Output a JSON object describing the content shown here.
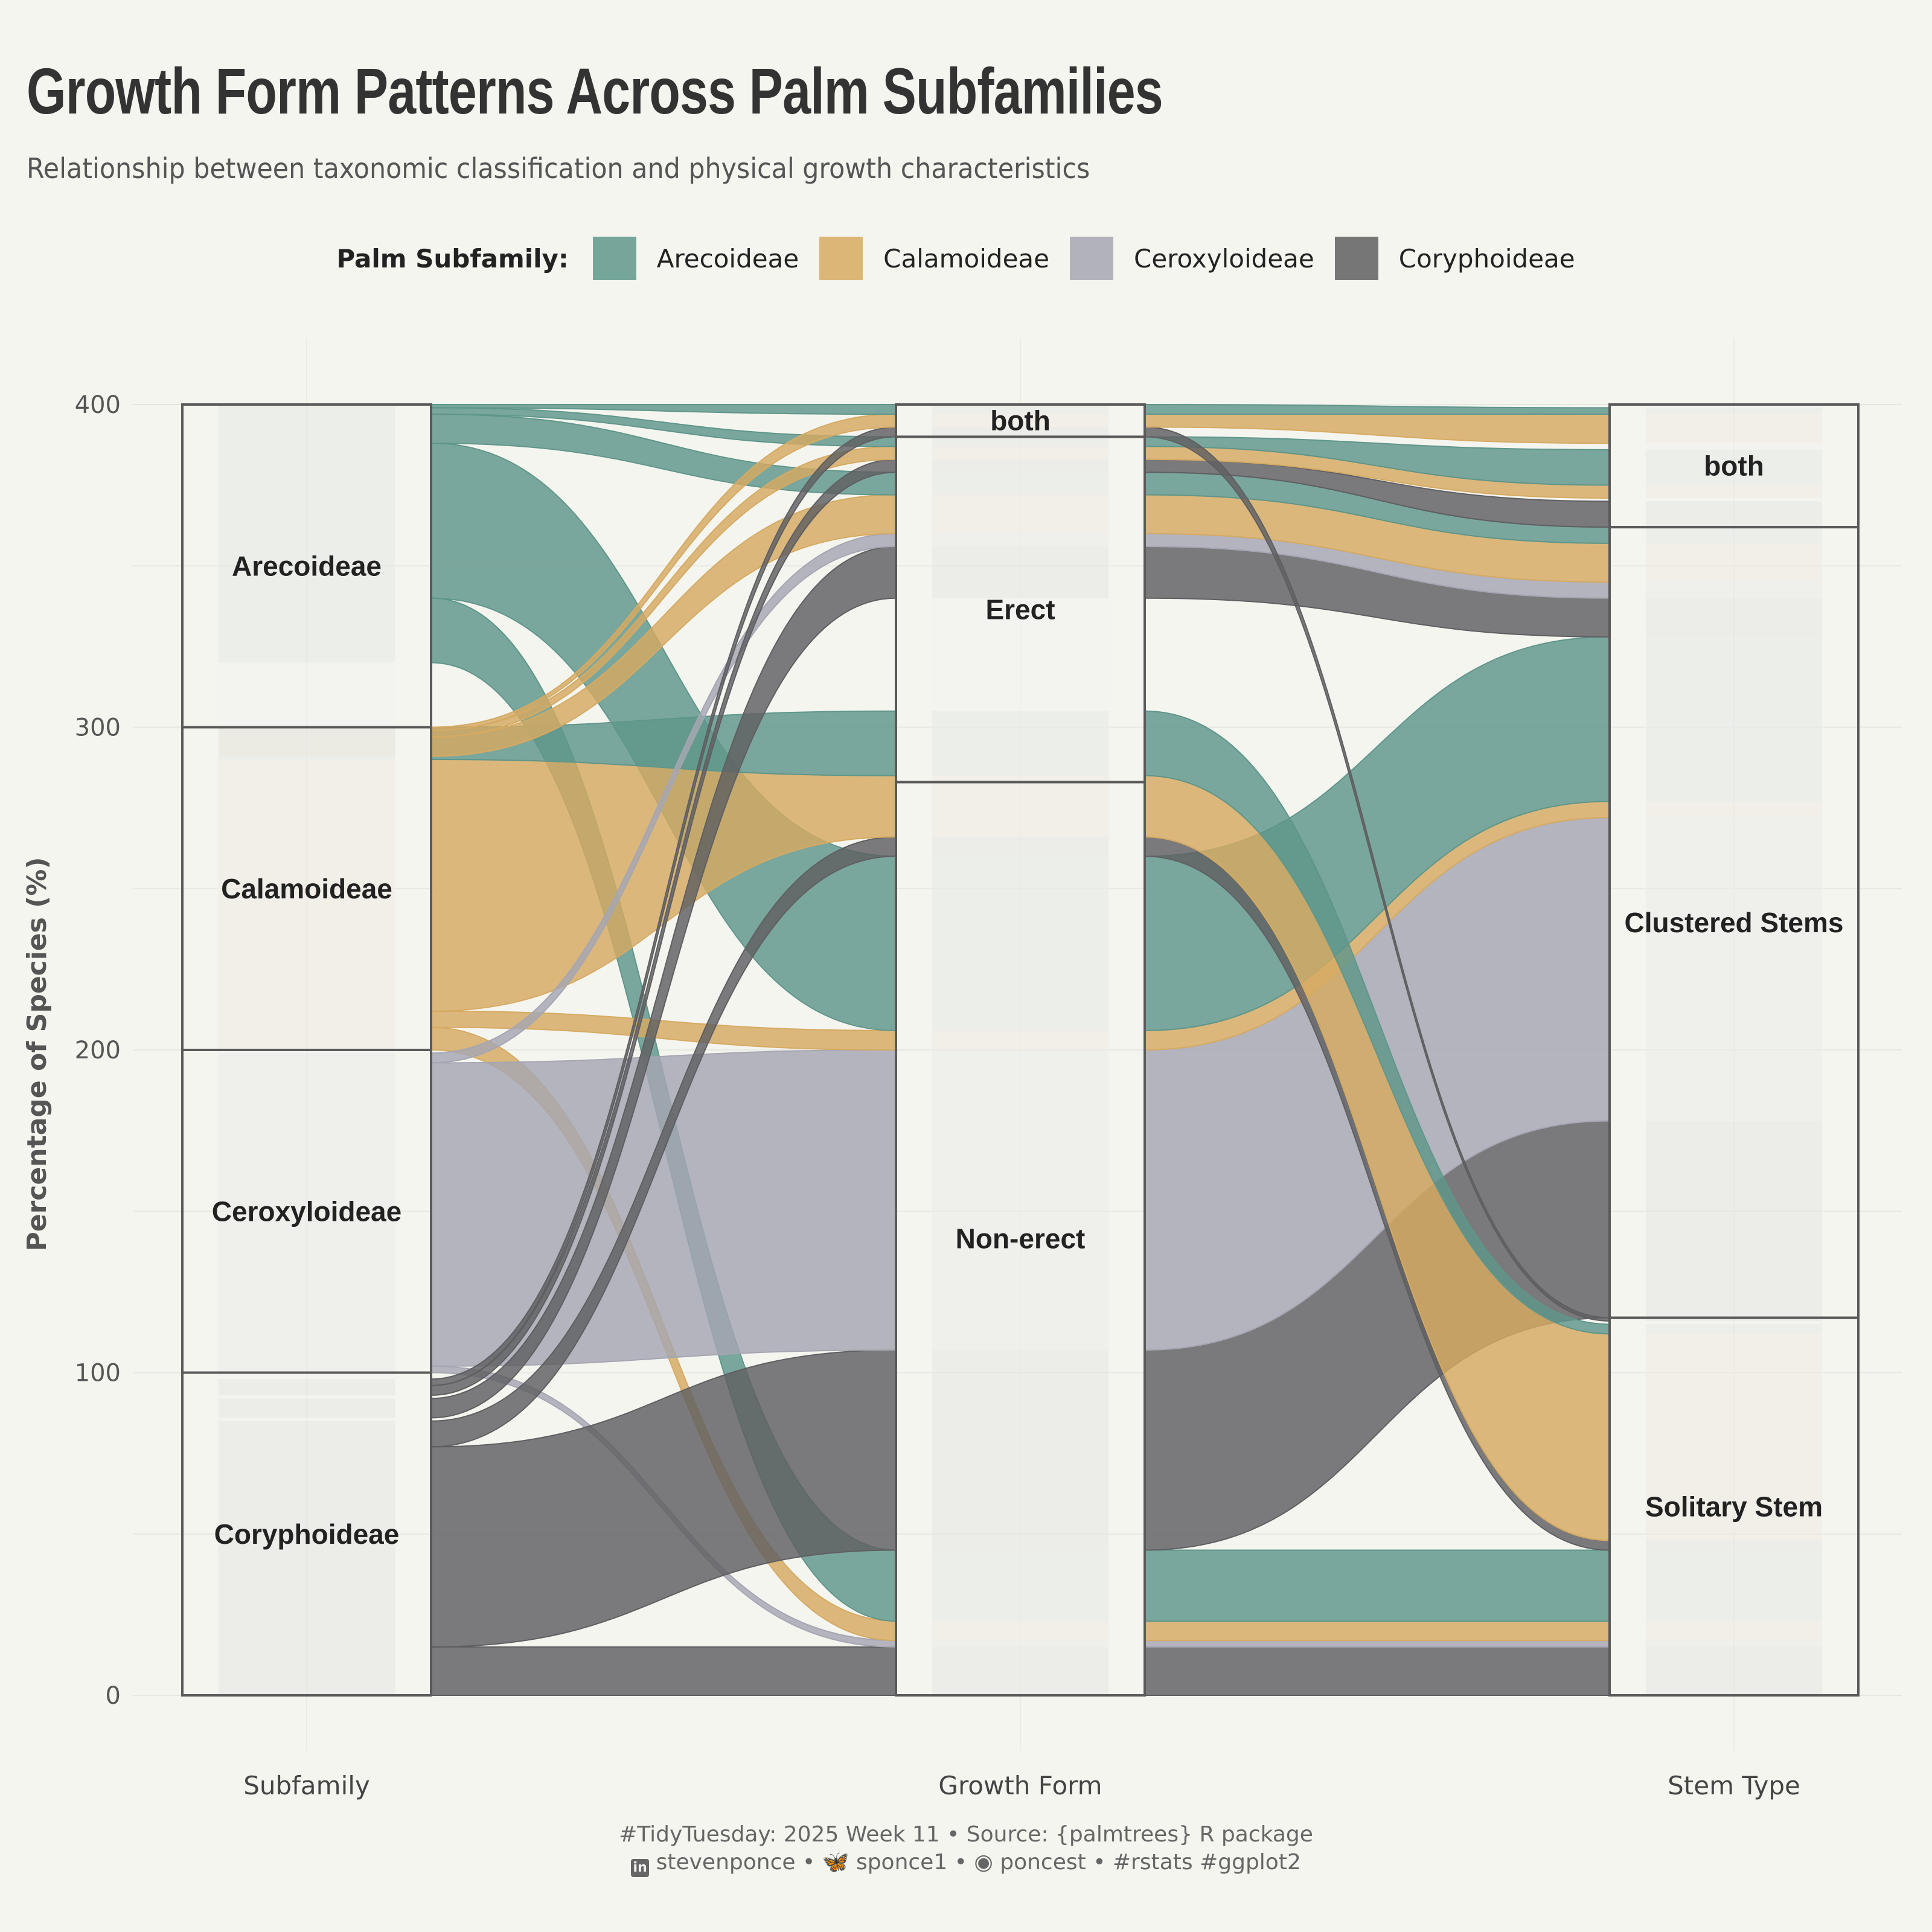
{
  "title": "Growth Form Patterns Across Palm Subfamilies",
  "subtitle": "Relationship between taxonomic classification and physical growth characteristics",
  "legend": {
    "title": "Palm Subfamily:",
    "items": [
      {
        "label": "Arecoideae",
        "color": "#5f968a"
      },
      {
        "label": "Calamoideae",
        "color": "#d6aa62"
      },
      {
        "label": "Ceroxyloideae",
        "color": "#a5a6b2"
      },
      {
        "label": "Coryphoideae",
        "color": "#5f5f62"
      }
    ]
  },
  "caption": {
    "line1": "#TidyTuesday: 2025 Week 11 • Source: {palmtrees} R package",
    "line2_parts": [
      "stevenponce",
      "sponce1",
      "poncest",
      "#rstats #ggplot2"
    ],
    "linkedin_icon": "linkedin-icon",
    "bluesky_icon": "butterfly-icon",
    "github_icon": "github-icon"
  },
  "chart_data": {
    "type": "alluvial",
    "ylabel": "Percentage of Species (%)",
    "ylim": [
      0,
      400
    ],
    "y_ticks": [
      0,
      100,
      200,
      300,
      400
    ],
    "axes": [
      "Subfamily",
      "Growth Form",
      "Stem Type"
    ],
    "strata": {
      "Subfamily": [
        {
          "label": "Coryphoideae",
          "ymin": 0,
          "ymax": 100
        },
        {
          "label": "Ceroxyloideae",
          "ymin": 100,
          "ymax": 200
        },
        {
          "label": "Calamoideae",
          "ymin": 200,
          "ymax": 300
        },
        {
          "label": "Arecoideae",
          "ymin": 300,
          "ymax": 400
        }
      ],
      "Growth Form": [
        {
          "label": "Non-erect",
          "ymin": 0,
          "ymax": 283
        },
        {
          "label": "Erect",
          "ymin": 283,
          "ymax": 390
        },
        {
          "label": "both",
          "ymin": 390,
          "ymax": 400
        }
      ],
      "Stem Type": [
        {
          "label": "Solitary Stem",
          "ymin": 0,
          "ymax": 117
        },
        {
          "label": "Clustered Stems",
          "ymin": 117,
          "ymax": 362
        },
        {
          "label": "both",
          "ymin": 362,
          "ymax": 400
        }
      ]
    },
    "flows": [
      {
        "subfamily": "Coryphoideae",
        "a": [
          0,
          15
        ],
        "b": [
          0,
          15
        ],
        "c": [
          0,
          15
        ]
      },
      {
        "subfamily": "Ceroxyloideae",
        "a": [
          100,
          102
        ],
        "b": [
          15,
          17
        ],
        "c": [
          15,
          17
        ]
      },
      {
        "subfamily": "Calamoideae",
        "a": [
          200,
          207
        ],
        "b": [
          17,
          23
        ],
        "c": [
          17,
          23
        ]
      },
      {
        "subfamily": "Arecoideae",
        "a": [
          320,
          340
        ],
        "b": [
          23,
          45
        ],
        "c": [
          23,
          45
        ]
      },
      {
        "subfamily": "Coryphoideae",
        "a": [
          15,
          77
        ],
        "b": [
          45,
          107
        ],
        "c": [
          117,
          178
        ]
      },
      {
        "subfamily": "Ceroxyloideae",
        "a": [
          102,
          196
        ],
        "b": [
          107,
          200
        ],
        "c": [
          178,
          272
        ]
      },
      {
        "subfamily": "Calamoideae",
        "a": [
          207,
          212
        ],
        "b": [
          200,
          206
        ],
        "c": [
          272,
          277
        ]
      },
      {
        "subfamily": "Arecoideae",
        "a": [
          340,
          388
        ],
        "b": [
          206,
          260
        ],
        "c": [
          277,
          328
        ]
      },
      {
        "subfamily": "Coryphoideae",
        "a": [
          77,
          85
        ],
        "b": [
          260,
          266
        ],
        "c": [
          45,
          48
        ]
      },
      {
        "subfamily": "Calamoideae",
        "a": [
          212,
          290
        ],
        "b": [
          266,
          285
        ],
        "c": [
          48,
          112
        ]
      },
      {
        "subfamily": "Arecoideae",
        "a": [
          290,
          300
        ],
        "b": [
          285,
          305
        ],
        "c": [
          112,
          115
        ]
      },
      {
        "subfamily": "Coryphoideae",
        "a": [
          86,
          92
        ],
        "b": [
          340,
          356
        ],
        "c": [
          328,
          340
        ]
      },
      {
        "subfamily": "Ceroxyloideae",
        "a": [
          196,
          199
        ],
        "b": [
          356,
          360
        ],
        "c": [
          340,
          345
        ]
      },
      {
        "subfamily": "Calamoideae",
        "a": [
          291,
          297
        ],
        "b": [
          360,
          372
        ],
        "c": [
          345,
          357
        ]
      },
      {
        "subfamily": "Arecoideae",
        "a": [
          388,
          397
        ],
        "b": [
          372,
          379
        ],
        "c": [
          357,
          362
        ]
      },
      {
        "subfamily": "Coryphoideae",
        "a": [
          93,
          96
        ],
        "b": [
          379,
          383
        ],
        "c": [
          362,
          370
        ]
      },
      {
        "subfamily": "Calamoideae",
        "a": [
          297,
          299
        ],
        "b": [
          383,
          387
        ],
        "c": [
          371,
          375
        ]
      },
      {
        "subfamily": "Arecoideae",
        "a": [
          397,
          399
        ],
        "b": [
          387,
          390
        ],
        "c": [
          375,
          386
        ]
      },
      {
        "subfamily": "Coryphoideae",
        "a": [
          96,
          98
        ],
        "b": [
          390,
          393
        ],
        "c": [
          116,
          117
        ]
      },
      {
        "subfamily": "Calamoideae",
        "a": [
          299,
          300
        ],
        "b": [
          393,
          397
        ],
        "c": [
          388,
          397
        ]
      },
      {
        "subfamily": "Arecoideae",
        "a": [
          399,
          400
        ],
        "b": [
          397,
          400
        ],
        "c": [
          397,
          399
        ]
      }
    ]
  }
}
